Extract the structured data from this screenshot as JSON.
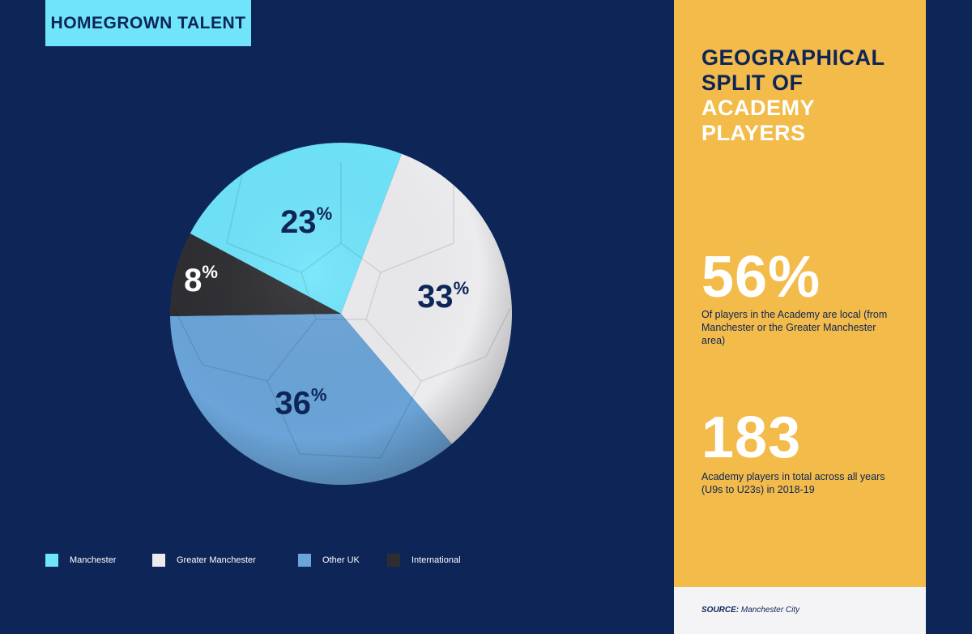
{
  "header": {
    "tag": "HOMEGROWN TALENT"
  },
  "panel": {
    "title_lines": [
      {
        "text": "GEOGRAPHICAL",
        "tone": "dark"
      },
      {
        "text": "SPLIT OF",
        "tone": "dark"
      },
      {
        "text": "ACADEMY",
        "tone": "light"
      },
      {
        "text": "PLAYERS",
        "tone": "light"
      }
    ],
    "stats": [
      {
        "value": "56%",
        "desc": "Of players in the Academy are local (from Manchester or the Greater Manchester area)"
      },
      {
        "value": "183",
        "desc": "Academy players in total across all years (U9s to U23s) in 2018-19"
      }
    ],
    "source_label": "SOURCE:",
    "source_text": "Manchester City"
  },
  "colors": {
    "background": "#0d2557",
    "panel": "#f2bb4a",
    "manchester": "#6fe4fb",
    "greater_manchester": "#ececef",
    "other_uk": "#6aa4d8",
    "international": "#2e2e32"
  },
  "chart_data": {
    "type": "pie",
    "categories": [
      "Manchester",
      "Greater Manchester",
      "Other UK",
      "International"
    ],
    "values": [
      23,
      33,
      36,
      8
    ],
    "labels": [
      "23%",
      "33%",
      "36%",
      "8%"
    ],
    "unit": "%",
    "legend_position": "bottom",
    "colors": [
      "#6fe4fb",
      "#ececef",
      "#6aa4d8",
      "#2e2e32"
    ]
  }
}
